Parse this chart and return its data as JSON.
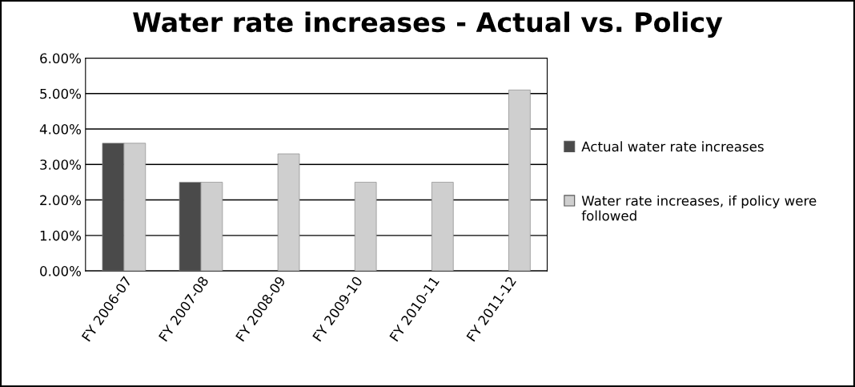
{
  "chart_data": {
    "type": "bar",
    "title": "Water rate increases - Actual vs. Policy",
    "categories": [
      "FY 2006-07",
      "FY 2007-08",
      "FY 2008-09",
      "FY 2009-10",
      "FY 2010-11",
      "FY 2011-12"
    ],
    "series": [
      {
        "name": "Actual water rate increases",
        "color": "#4a4a4a",
        "values": [
          3.6,
          2.5,
          null,
          null,
          null,
          null
        ]
      },
      {
        "name": "Water rate increases, if policy were followed",
        "color": "#cfcfcf",
        "values": [
          3.6,
          2.5,
          3.3,
          2.5,
          2.5,
          5.1
        ]
      }
    ],
    "ylim": [
      0,
      6
    ],
    "yticks": [
      {
        "value": 0,
        "label": "0.00%"
      },
      {
        "value": 1,
        "label": "1.00%"
      },
      {
        "value": 2,
        "label": "2.00%"
      },
      {
        "value": 3,
        "label": "3.00%"
      },
      {
        "value": 4,
        "label": "4.00%"
      },
      {
        "value": 5,
        "label": "5.00%"
      },
      {
        "value": 6,
        "label": "6.00%"
      }
    ],
    "grid": "y",
    "legend": "right"
  }
}
